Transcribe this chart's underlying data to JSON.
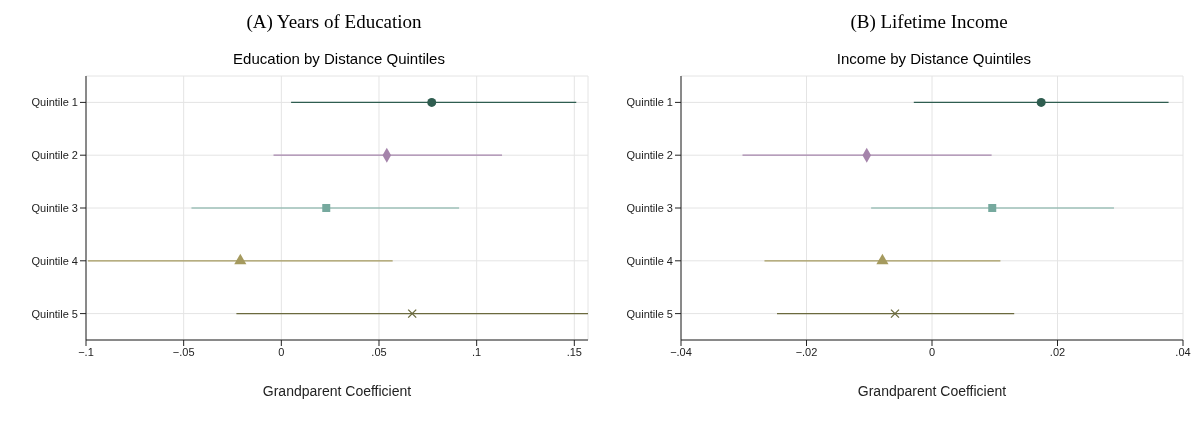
{
  "chart_data": [
    {
      "type": "scatter",
      "orientation": "horizontal",
      "title": "(A) Years of Education",
      "subtitle": "Education by Distance Quintiles",
      "xlabel": "Grandparent Coefficient",
      "categories": [
        "Quintile 1",
        "Quintile 2",
        "Quintile 3",
        "Quintile 4",
        "Quintile 5"
      ],
      "xlim": [
        -0.1,
        0.157
      ],
      "xticks": [
        {
          "value": -0.1,
          "label": "−.1"
        },
        {
          "value": -0.05,
          "label": "−.05"
        },
        0,
        {
          "value": 0.05,
          "label": ".05"
        },
        {
          "value": 0.1,
          "label": ".1"
        },
        {
          "value": 0.15,
          "label": ".15"
        }
      ],
      "grid": true,
      "legend": false,
      "series": [
        {
          "color": "#2f5d50",
          "marker": "circle",
          "values": [
            0.077,
            null,
            null,
            null,
            null
          ],
          "errors": [
            [
              0.005,
              0.151
            ],
            null,
            null,
            null,
            null
          ]
        },
        {
          "color": "#a584ab",
          "marker": "diamond",
          "values": [
            null,
            0.054,
            null,
            null,
            null
          ],
          "errors": [
            null,
            [
              -0.004,
              0.113
            ],
            null,
            null,
            null
          ]
        },
        {
          "color": "#76a99e",
          "marker": "square",
          "values": [
            null,
            null,
            0.023,
            null,
            null
          ],
          "errors": [
            null,
            null,
            [
              -0.046,
              0.091
            ],
            null,
            null
          ]
        },
        {
          "color": "#a59a5e",
          "marker": "triangle",
          "values": [
            null,
            null,
            null,
            -0.021,
            null
          ],
          "errors": [
            null,
            null,
            null,
            [
              -0.099,
              0.057
            ],
            null
          ]
        },
        {
          "color": "#6b6a3e",
          "marker": "cross",
          "values": [
            null,
            null,
            null,
            null,
            0.067
          ],
          "errors": [
            null,
            null,
            null,
            null,
            [
              -0.023,
              0.157
            ]
          ]
        }
      ]
    },
    {
      "type": "scatter",
      "orientation": "horizontal",
      "title": "(B) Lifetime Income",
      "subtitle": "Income by Distance Quintiles",
      "xlabel": "Grandparent Coefficient",
      "categories": [
        "Quintile 1",
        "Quintile 2",
        "Quintile 3",
        "Quintile 4",
        "Quintile 5"
      ],
      "xlim": [
        -0.04,
        0.04
      ],
      "xticks": [
        {
          "value": -0.04,
          "label": "−.04"
        },
        {
          "value": -0.02,
          "label": "−.02"
        },
        0,
        {
          "value": 0.02,
          "label": ".02"
        },
        {
          "value": 0.04,
          "label": ".04"
        }
      ],
      "grid": true,
      "legend": false,
      "series": [
        {
          "color": "#2f5d50",
          "marker": "circle",
          "values": [
            0.0174,
            null,
            null,
            null,
            null
          ],
          "errors": [
            [
              -0.0029,
              0.0377
            ],
            null,
            null,
            null,
            null
          ]
        },
        {
          "color": "#a584ab",
          "marker": "diamond",
          "values": [
            null,
            -0.0104,
            null,
            null,
            null
          ],
          "errors": [
            null,
            [
              -0.0302,
              0.0095
            ],
            null,
            null,
            null
          ]
        },
        {
          "color": "#76a99e",
          "marker": "square",
          "values": [
            null,
            null,
            0.0096,
            null,
            null
          ],
          "errors": [
            null,
            null,
            [
              -0.0097,
              0.029
            ],
            null,
            null
          ]
        },
        {
          "color": "#a59a5e",
          "marker": "triangle",
          "values": [
            null,
            null,
            null,
            -0.0079,
            null
          ],
          "errors": [
            null,
            null,
            null,
            [
              -0.0267,
              0.0109
            ],
            null
          ]
        },
        {
          "color": "#6b6a3e",
          "marker": "cross",
          "values": [
            null,
            null,
            null,
            null,
            -0.0059
          ],
          "errors": [
            null,
            null,
            null,
            null,
            [
              -0.0247,
              0.0131
            ]
          ]
        }
      ]
    }
  ]
}
